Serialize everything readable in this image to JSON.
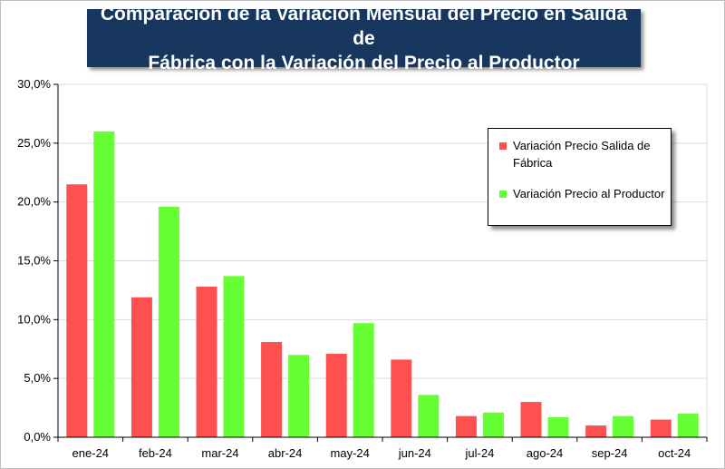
{
  "title": {
    "line1": "Comparación de la Variación Mensual del Precio en Salida de",
    "line2": "Fábrica con la Variación del Precio al Productor"
  },
  "chart_data": {
    "type": "bar",
    "categories": [
      "ene-24",
      "feb-24",
      "mar-24",
      "abr-24",
      "may-24",
      "jun-24",
      "jul-24",
      "ago-24",
      "sep-24",
      "oct-24"
    ],
    "series": [
      {
        "name": "Variación Precio Salida de Fábrica",
        "color": "#ff5050",
        "values": [
          21.5,
          11.9,
          12.8,
          8.1,
          7.1,
          6.6,
          1.8,
          3.0,
          1.0,
          1.5
        ]
      },
      {
        "name": "Variación Precio al Productor",
        "color": "#66ff33",
        "values": [
          26.0,
          19.6,
          13.7,
          7.0,
          9.7,
          3.6,
          2.1,
          1.7,
          1.8,
          2.0
        ]
      }
    ],
    "ylim": [
      0,
      30
    ],
    "yticks": [
      0,
      5,
      10,
      15,
      20,
      25,
      30
    ],
    "ytick_labels": [
      "0,0%",
      "5,0%",
      "10,0%",
      "15,0%",
      "20,0%",
      "25,0%",
      "30,0%"
    ],
    "grid": true,
    "legend_position": "top-right",
    "xlabel": "",
    "ylabel": ""
  }
}
